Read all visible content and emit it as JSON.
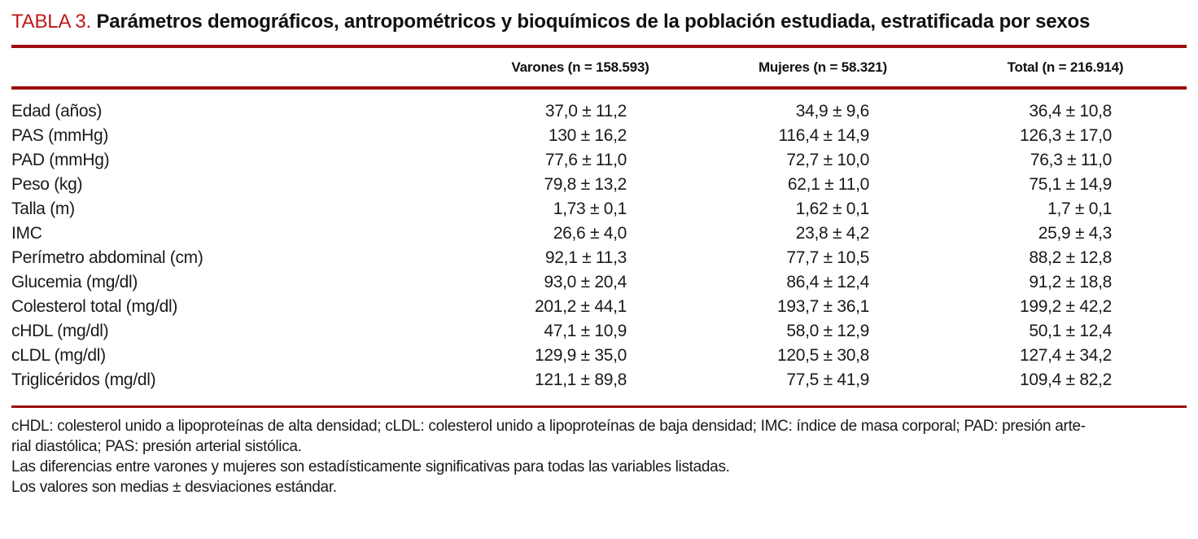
{
  "document": {
    "title": {
      "label": "TABLA 3.",
      "text": "Parámetros demográficos, antropométricos y bioquímicos de la población estudiada, estratificada por sexos"
    }
  },
  "table": {
    "header": {
      "varones": "Varones (n = 158.593)",
      "mujeres": "Mujeres (n = 58.321)",
      "total": "Total (n = 216.914)"
    },
    "rows": [
      {
        "label": "Edad (años)",
        "varones": "37,0 ± 11,2",
        "mujeres": "34,9 ± 9,6",
        "total": "36,4 ± 10,8"
      },
      {
        "label": "PAS (mmHg)",
        "varones": "130 ± 16,2",
        "mujeres": "116,4 ± 14,9",
        "total": "126,3 ± 17,0"
      },
      {
        "label": "PAD (mmHg)",
        "varones": "77,6 ± 11,0",
        "mujeres": "72,7 ± 10,0",
        "total": "76,3 ± 11,0"
      },
      {
        "label": "Peso (kg)",
        "varones": "79,8 ± 13,2",
        "mujeres": "62,1 ± 11,0",
        "total": "75,1 ± 14,9"
      },
      {
        "label": "Talla (m)",
        "varones": "1,73 ± 0,1",
        "mujeres": "1,62 ± 0,1",
        "total": "1,7 ± 0,1"
      },
      {
        "label": "IMC",
        "varones": "26,6 ± 4,0",
        "mujeres": "23,8 ± 4,2",
        "total": "25,9 ± 4,3"
      },
      {
        "label": "Perímetro abdominal (cm)",
        "varones": "92,1 ± 11,3",
        "mujeres": "77,7 ± 10,5",
        "total": "88,2 ± 12,8"
      },
      {
        "label": "Glucemia (mg/dl)",
        "varones": "93,0 ± 20,4",
        "mujeres": "86,4 ± 12,4",
        "total": "91,2 ± 18,8"
      },
      {
        "label": "Colesterol total (mg/dl)",
        "varones": "201,2 ± 44,1",
        "mujeres": "193,7 ± 36,1",
        "total": "199,2 ± 42,2"
      },
      {
        "label": "cHDL (mg/dl)",
        "varones": "47,1 ± 10,9",
        "mujeres": "58,0 ± 12,9",
        "total": "50,1 ± 12,4"
      },
      {
        "label": "cLDL (mg/dl)",
        "varones": "129,9 ± 35,0",
        "mujeres": "120,5 ± 30,8",
        "total": "127,4 ± 34,2"
      },
      {
        "label": "Triglicéridos (mg/dl)",
        "varones": "121,1 ± 89,8",
        "mujeres": "77,5 ± 41,9",
        "total": "109,4 ± 82,2"
      }
    ]
  },
  "footnotes": {
    "lines": [
      "cHDL: colesterol unido a lipoproteínas de alta densidad; cLDL: colesterol unido a lipoproteínas de baja densidad; IMC: índice de masa corporal; PAD: presión arte-",
      "rial diastólica; PAS: presión arterial sistólica.",
      "Las diferencias entre varones y mujeres son estadísticamente significativas para todas las variables listadas.",
      "Los valores son medias ± desviaciones estándar."
    ]
  },
  "colors": {
    "accent_red": "#c0181c",
    "rule_red": "#9c0d10"
  }
}
